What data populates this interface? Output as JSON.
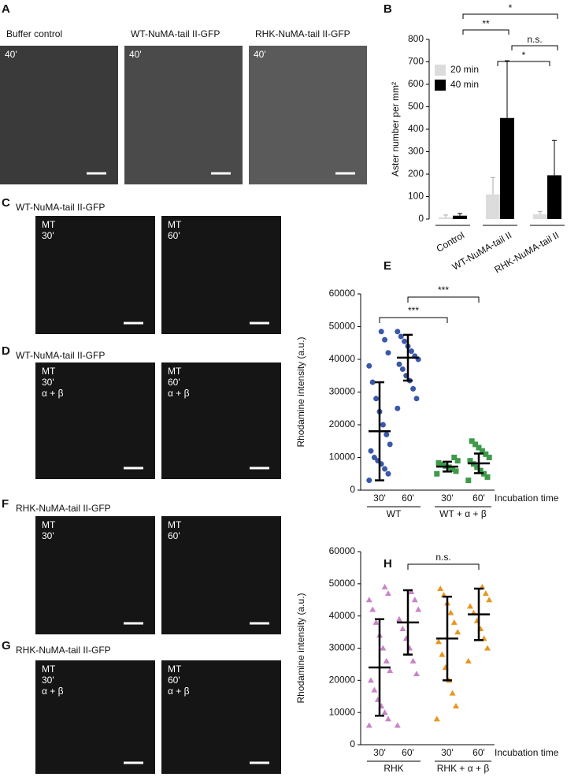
{
  "panels": {
    "A": {
      "letter": "A",
      "images": [
        {
          "title": "Buffer control",
          "overlay": [
            "40'"
          ]
        },
        {
          "title": "WT-NuMA-tail II-GFP",
          "overlay": [
            "40'"
          ]
        },
        {
          "title": "RHK-NuMA-tail II-GFP",
          "overlay": [
            "40'"
          ]
        }
      ]
    },
    "C": {
      "letter": "C",
      "title": "WT-NuMA-tail II-GFP",
      "images": [
        {
          "overlay": [
            "MT",
            "30'"
          ]
        },
        {
          "overlay": [
            "MT",
            "60'"
          ]
        }
      ]
    },
    "D": {
      "letter": "D",
      "title": "WT-NuMA-tail II-GFP",
      "images": [
        {
          "overlay": [
            "MT",
            "30'",
            "α + β"
          ]
        },
        {
          "overlay": [
            "MT",
            "60'",
            "α + β"
          ]
        }
      ]
    },
    "F": {
      "letter": "F",
      "title": "RHK-NuMA-tail II-GFP",
      "images": [
        {
          "overlay": [
            "MT",
            "30'"
          ]
        },
        {
          "overlay": [
            "MT",
            "60'"
          ]
        }
      ]
    },
    "G": {
      "letter": "G",
      "title": "RHK-NuMA-tail II-GFP",
      "images": [
        {
          "overlay": [
            "MT",
            "30'",
            "α + β"
          ]
        },
        {
          "overlay": [
            "MT",
            "60'",
            "α + β"
          ]
        }
      ]
    }
  },
  "chart_data": [
    {
      "type": "bar",
      "letter": "B",
      "ylabel": "Aster number per mm²",
      "categories": [
        "Control",
        "WT-NuMA-tail II",
        "RHK-NuMA-tail II"
      ],
      "series": [
        {
          "name": "20 min",
          "color": "#dcdcdc",
          "values": [
            8,
            110,
            22
          ],
          "errors": [
            10,
            75,
            12
          ]
        },
        {
          "name": "40 min",
          "color": "#000000",
          "values": [
            15,
            450,
            195
          ],
          "errors": [
            10,
            255,
            155
          ]
        }
      ],
      "ylim": [
        0,
        800
      ],
      "yticks": [
        0,
        100,
        200,
        300,
        400,
        500,
        600,
        700,
        800
      ],
      "annotations": [
        "*",
        "**",
        "n.s.",
        "*"
      ]
    },
    {
      "type": "dot",
      "letter": "E",
      "ylabel": "Rhodamine intensity (a.u.)",
      "xlabel": "Incubation time",
      "categories": [
        "30'",
        "60'",
        "30'",
        "60'"
      ],
      "group_labels": [
        "WT",
        "WT + α + β"
      ],
      "ylim": [
        0,
        60000
      ],
      "yticks": [
        0,
        10000,
        20000,
        30000,
        40000,
        50000,
        60000
      ],
      "groups": [
        {
          "color": "#3b58a8",
          "marker": "circle",
          "mean": 18000,
          "error": 15000,
          "points": [
            3000,
            5000,
            6500,
            8000,
            9000,
            10000,
            12000,
            14000,
            17000,
            20000,
            24000,
            28000,
            33000,
            38000,
            42000,
            46000,
            48500
          ]
        },
        {
          "color": "#3b58a8",
          "marker": "circle",
          "mean": 40500,
          "error": 7000,
          "points": [
            25000,
            28000,
            31000,
            33500,
            35000,
            37000,
            38500,
            40000,
            41000,
            42500,
            44000,
            45500,
            47000,
            48500
          ]
        },
        {
          "color": "#3e9a4a",
          "marker": "square",
          "mean": 7200,
          "error": 1500,
          "points": [
            5000,
            5800,
            6400,
            7000,
            7400,
            7800,
            8300,
            9000,
            10000
          ]
        },
        {
          "color": "#3e9a4a",
          "marker": "square",
          "mean": 8200,
          "error": 3000,
          "points": [
            3000,
            4000,
            5000,
            6000,
            7000,
            8000,
            9000,
            10000,
            11000,
            12000,
            13000,
            14000,
            15000
          ]
        }
      ],
      "annotations": [
        "***",
        "***"
      ]
    },
    {
      "type": "dot",
      "letter": "H",
      "ylabel": "Rhodamine intensity (a.u.)",
      "xlabel": "Incubation time",
      "categories": [
        "30'",
        "60'",
        "30'",
        "60'"
      ],
      "group_labels": [
        "RHK",
        "RHK + α + β"
      ],
      "ylim": [
        0,
        60000
      ],
      "yticks": [
        0,
        10000,
        20000,
        30000,
        40000,
        50000,
        60000
      ],
      "groups": [
        {
          "color": "#c984c8",
          "marker": "triangle",
          "mean": 24000,
          "error": 15000,
          "points": [
            6000,
            8000,
            10000,
            12000,
            14000,
            17000,
            20000,
            23000,
            26000,
            30000,
            34000,
            38000,
            42000,
            45000,
            47000,
            49000
          ]
        },
        {
          "color": "#c984c8",
          "marker": "triangle",
          "mean": 38000,
          "error": 10000,
          "points": [
            6000,
            22000,
            26000,
            30000,
            33000,
            36000,
            39000,
            42000,
            45000,
            47500
          ]
        },
        {
          "color": "#e8961e",
          "marker": "triangle",
          "mean": 33000,
          "error": 13000,
          "points": [
            8000,
            12000,
            16000,
            20000,
            24000,
            28000,
            32000,
            35000,
            38000,
            41000,
            44000,
            46500,
            48500
          ]
        },
        {
          "color": "#e8961e",
          "marker": "triangle",
          "mean": 40500,
          "error": 8000,
          "points": [
            26000,
            30000,
            33000,
            36000,
            38500,
            41000,
            43000,
            45000,
            47000,
            49000
          ]
        }
      ],
      "annotations": [
        "n.s."
      ]
    }
  ]
}
